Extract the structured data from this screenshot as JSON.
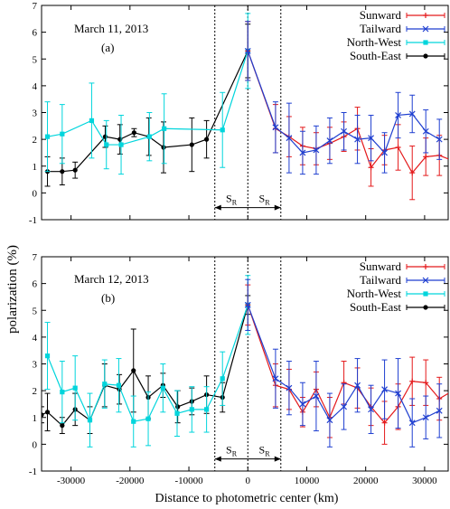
{
  "figure": {
    "ylabel": "polarization (%)",
    "xlabel": "Distance to photometric center (km)"
  },
  "chart_data": [
    {
      "type": "line",
      "title": "March 11, 2013",
      "panel_label": "(a)",
      "xlim": [
        -35000,
        34000
      ],
      "ylim": [
        -1,
        7
      ],
      "x_ticks": [
        -30000,
        -20000,
        -10000,
        0,
        10000,
        20000,
        30000
      ],
      "y_ticks": [
        -1,
        0,
        1,
        2,
        3,
        4,
        5,
        6,
        7
      ],
      "x_tick_labels_shown": false,
      "region_label": "S",
      "region_label_sub": "R",
      "region_bounds": [
        -5600,
        5600
      ],
      "region_arrow_y": -0.55,
      "legend_position": "top-right",
      "series": [
        {
          "name": "Sunward",
          "color": "#e41a1c",
          "marker": "plus",
          "x": [
            0,
            4700,
            7000,
            9300,
            11600,
            13900,
            16300,
            18600,
            20900,
            23200,
            25500,
            27900,
            30200,
            32500,
            34800
          ],
          "y": [
            5.3,
            2.4,
            2.1,
            1.75,
            1.65,
            1.85,
            2.1,
            2.4,
            0.95,
            1.6,
            1.7,
            0.75,
            1.35,
            1.4,
            1.2
          ],
          "err": [
            1.1,
            0.9,
            0.75,
            0.7,
            0.6,
            0.6,
            0.55,
            0.8,
            0.7,
            0.55,
            0.85,
            1.0,
            0.7,
            0.75,
            0.9
          ]
        },
        {
          "name": "Tailward",
          "color": "#1f3fd0",
          "marker": "x",
          "x": [
            0,
            4700,
            7000,
            9300,
            11600,
            13900,
            16300,
            18600,
            20900,
            23200,
            25500,
            27900,
            30200,
            32500
          ],
          "y": [
            5.3,
            2.45,
            2.05,
            1.5,
            1.6,
            1.95,
            2.3,
            2.0,
            2.05,
            1.5,
            2.9,
            2.95,
            2.3,
            2.0
          ],
          "err": [
            1.1,
            0.95,
            1.3,
            0.8,
            0.9,
            0.85,
            0.7,
            0.9,
            0.85,
            0.75,
            0.85,
            0.7,
            0.8,
            0.75
          ]
        },
        {
          "name": "North-West",
          "color": "#00d5dc",
          "marker": "square",
          "x": [
            -34000,
            -31500,
            -26500,
            -24000,
            -21500,
            -16700,
            -14200,
            -4300,
            0
          ],
          "y": [
            2.1,
            2.2,
            2.7,
            1.8,
            1.8,
            2.1,
            2.4,
            2.35,
            5.3
          ],
          "err": [
            1.3,
            1.1,
            1.4,
            0.9,
            1.1,
            0.9,
            1.3,
            1.4,
            1.4
          ]
        },
        {
          "name": "South-East",
          "color": "#000000",
          "marker": "circle",
          "x": [
            -34000,
            -31500,
            -29300,
            -24200,
            -21700,
            -19300,
            -16800,
            -14300,
            -9500,
            -7000,
            0
          ],
          "y": [
            0.8,
            0.8,
            0.85,
            2.1,
            2.0,
            2.25,
            2.1,
            1.7,
            1.8,
            2.0,
            5.3
          ],
          "err": [
            0.55,
            0.5,
            0.3,
            0.4,
            0.55,
            0.15,
            0.7,
            0.95,
            1.0,
            0.7,
            1.0
          ]
        }
      ]
    },
    {
      "type": "line",
      "title": "March 12, 2013",
      "panel_label": "(b)",
      "xlim": [
        -35000,
        34000
      ],
      "ylim": [
        -1,
        7
      ],
      "x_ticks": [
        -30000,
        -20000,
        -10000,
        0,
        10000,
        20000,
        30000
      ],
      "x_tick_labels": [
        "-30000",
        "-20000",
        "-10000",
        "0",
        "10000",
        "20000",
        "30000"
      ],
      "y_ticks": [
        -1,
        0,
        1,
        2,
        3,
        4,
        5,
        6,
        7
      ],
      "x_tick_labels_shown": true,
      "region_label": "S",
      "region_label_sub": "R",
      "region_bounds": [
        -5600,
        5600
      ],
      "region_arrow_y": -0.55,
      "legend_position": "top-right",
      "series": [
        {
          "name": "Sunward",
          "color": "#e41a1c",
          "marker": "plus",
          "x": [
            0,
            4700,
            7000,
            9300,
            11600,
            13900,
            16300,
            18600,
            20900,
            23200,
            25500,
            27900,
            30200,
            32500,
            34800
          ],
          "y": [
            5.2,
            2.2,
            2.05,
            1.2,
            2.05,
            1.0,
            2.3,
            2.1,
            1.4,
            0.8,
            1.4,
            2.35,
            2.3,
            1.7,
            2.0
          ],
          "err": [
            0.75,
            0.8,
            0.75,
            0.55,
            0.65,
            0.75,
            0.8,
            0.75,
            0.7,
            0.8,
            0.85,
            0.9,
            0.85,
            0.8,
            0.75
          ]
        },
        {
          "name": "Tailward",
          "color": "#1f3fd0",
          "marker": "x",
          "x": [
            0,
            4700,
            7000,
            9300,
            11600,
            13900,
            16300,
            18600,
            20900,
            23200,
            25500,
            27900,
            30200,
            32500
          ],
          "y": [
            5.2,
            2.45,
            2.1,
            1.5,
            1.8,
            0.9,
            1.4,
            2.2,
            1.3,
            2.05,
            1.9,
            0.8,
            1.0,
            1.25
          ],
          "err": [
            0.95,
            1.1,
            1.0,
            0.8,
            1.3,
            1.0,
            0.85,
            1.0,
            0.9,
            1.1,
            1.3,
            0.9,
            0.8,
            1.0
          ]
        },
        {
          "name": "North-West",
          "color": "#00d5dc",
          "marker": "square",
          "x": [
            -34000,
            -31500,
            -29300,
            -26800,
            -24300,
            -21900,
            -19400,
            -16900,
            -14400,
            -12000,
            -9500,
            -7000,
            -4300,
            0
          ],
          "y": [
            3.3,
            1.95,
            2.1,
            0.9,
            2.25,
            2.2,
            0.85,
            0.95,
            2.1,
            1.15,
            1.3,
            1.3,
            2.45,
            5.2
          ],
          "err": [
            1.25,
            1.15,
            1.2,
            1.0,
            0.9,
            1.0,
            0.95,
            1.0,
            0.9,
            0.85,
            0.85,
            0.85,
            1.0,
            1.1
          ]
        },
        {
          "name": "South-East",
          "color": "#000000",
          "marker": "circle",
          "x": [
            -35000,
            -34000,
            -31500,
            -29300,
            -26800,
            -24300,
            -21800,
            -19400,
            -16900,
            -14400,
            -11900,
            -9500,
            -7000,
            -4300,
            0
          ],
          "y": [
            1.1,
            1.2,
            0.7,
            1.3,
            0.9,
            2.2,
            2.05,
            2.75,
            1.75,
            2.2,
            1.4,
            1.6,
            1.85,
            1.75,
            5.2
          ],
          "err": [
            0.3,
            0.7,
            0.3,
            0.6,
            0.5,
            0.8,
            0.55,
            1.55,
            0.8,
            0.45,
            0.6,
            0.5,
            0.7,
            0.55,
            0.35
          ]
        }
      ]
    }
  ]
}
